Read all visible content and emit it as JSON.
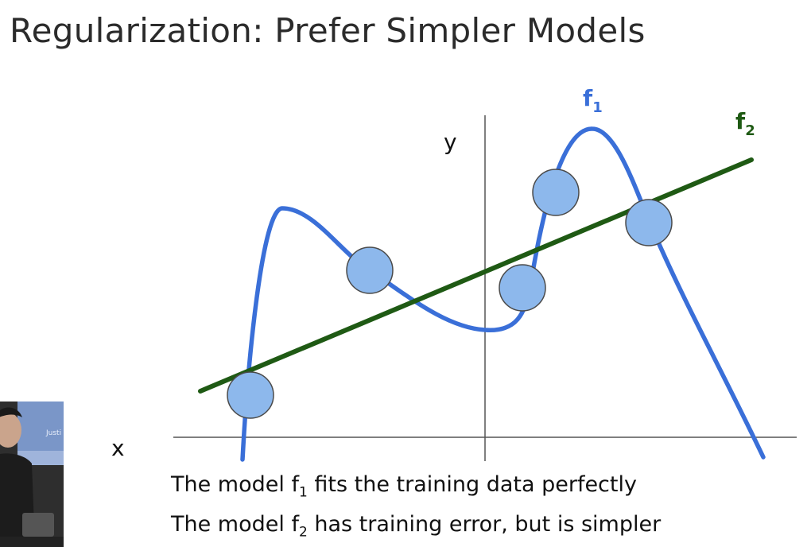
{
  "title": "Regularization: Prefer Simpler Models",
  "axes": {
    "x_label": "x",
    "y_label": "y"
  },
  "curves": [
    {
      "label": "f",
      "subscript": "1",
      "color": "#3a6fd8"
    },
    {
      "label": "f",
      "subscript": "2",
      "color": "#1f5a14"
    }
  ],
  "data_points": {
    "count": 5,
    "fill": "#8db8ec",
    "stroke": "#4a4a4a"
  },
  "captions": [
    {
      "pre": "The model f",
      "sub": "1",
      "post": " fits the training data perfectly"
    },
    {
      "pre": "The model f",
      "sub": "2",
      "post": " has training error, but is simpler"
    }
  ],
  "webcam": {
    "sign_text": "Justi"
  }
}
